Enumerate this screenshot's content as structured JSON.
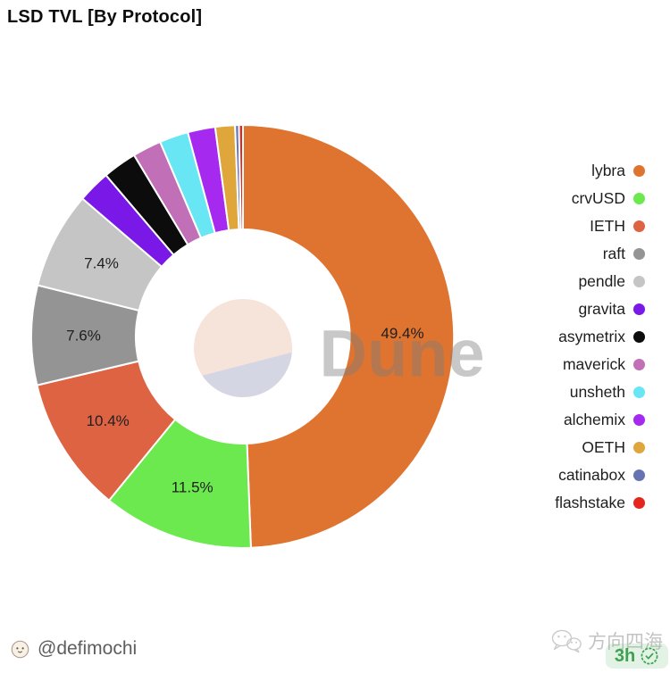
{
  "title": "LSD TVL [By Protocol]",
  "chart_data": {
    "type": "pie",
    "subtype": "donut",
    "title": "LSD TVL [By Protocol]",
    "unit": "%",
    "legend_position": "right",
    "start_angle": "top, clockwise",
    "slices": [
      {
        "label": "lybra",
        "value": 49.4,
        "color": "#DF7430",
        "pct_label": "49.4%"
      },
      {
        "label": "crvUSD",
        "value": 11.5,
        "color": "#6BE94E",
        "pct_label": "11.5%"
      },
      {
        "label": "IETH",
        "value": 10.4,
        "color": "#DD6343",
        "pct_label": "10.4%"
      },
      {
        "label": "raft",
        "value": 7.6,
        "color": "#949494",
        "pct_label": "7.6%"
      },
      {
        "label": "pendle",
        "value": 7.4,
        "color": "#C5C5C5",
        "pct_label": "7.4%"
      },
      {
        "label": "gravita",
        "value": 2.5,
        "color": "#7A18E8",
        "pct_label": ""
      },
      {
        "label": "asymetrix",
        "value": 2.6,
        "color": "#0C0C0C",
        "pct_label": ""
      },
      {
        "label": "maverick",
        "value": 2.2,
        "color": "#C16FB7",
        "pct_label": ""
      },
      {
        "label": "unsheth",
        "value": 2.2,
        "color": "#69E6F4",
        "pct_label": ""
      },
      {
        "label": "alchemix",
        "value": 2.1,
        "color": "#A629F0",
        "pct_label": ""
      },
      {
        "label": "OETH",
        "value": 1.5,
        "color": "#DFA63C",
        "pct_label": ""
      },
      {
        "label": "catinabox",
        "value": 0.3,
        "color": "#6673B2",
        "pct_label": ""
      },
      {
        "label": "flashstake",
        "value": 0.3,
        "color": "#E4261F",
        "pct_label": ""
      }
    ],
    "watermark": {
      "text": "Dune",
      "logo_top_color": "#F6E3DA",
      "logo_bottom_color": "#D5D6E3"
    }
  },
  "footer": {
    "handle": "@defimochi",
    "watermark_cn": "方向四海",
    "badge": {
      "time": "3h",
      "color": "#3CA251"
    }
  }
}
